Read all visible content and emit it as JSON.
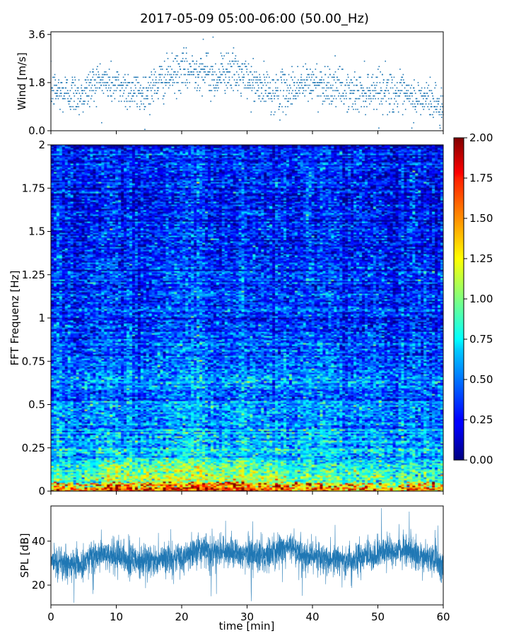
{
  "title": "2017-05-09 05:00-06:00 (50.00_Hz)",
  "chart_data": [
    {
      "type": "scatter",
      "id": "wind",
      "ylabel": "Wind [m/s]",
      "xlim": [
        0,
        60
      ],
      "ylim": [
        0,
        3.7
      ],
      "yticks": [
        0.0,
        1.8,
        3.6
      ],
      "ytick_labels": [
        "0.0",
        "1.8",
        "3.6"
      ],
      "marker_color": "#1f77b4",
      "trend": [
        [
          0,
          1.5
        ],
        [
          5,
          1.35
        ],
        [
          7,
          1.9
        ],
        [
          10,
          1.7
        ],
        [
          14,
          1.4
        ],
        [
          18,
          2.0
        ],
        [
          20,
          2.2
        ],
        [
          23,
          2.3
        ],
        [
          25,
          1.9
        ],
        [
          27,
          2.3
        ],
        [
          30,
          1.9
        ],
        [
          32,
          1.6
        ],
        [
          35,
          1.4
        ],
        [
          38,
          1.7
        ],
        [
          40,
          1.8
        ],
        [
          43,
          1.7
        ],
        [
          46,
          1.4
        ],
        [
          50,
          1.6
        ],
        [
          52,
          1.5
        ],
        [
          55,
          1.2
        ],
        [
          58,
          1.2
        ],
        [
          60,
          0.8
        ]
      ],
      "notable_points": [
        [
          23.3,
          3.42
        ],
        [
          24.8,
          3.5
        ],
        [
          26.0,
          2.9
        ]
      ]
    },
    {
      "type": "heatmap",
      "id": "spectrogram",
      "ylabel": "FFT Frequenz [Hz]",
      "xlim": [
        0,
        60
      ],
      "ylim": [
        0,
        2
      ],
      "yticks": [
        0,
        0.25,
        0.5,
        0.75,
        1,
        1.25,
        1.5,
        1.75,
        2
      ],
      "ytick_labels": [
        "0",
        "0.25",
        "0.5",
        "0.75",
        "1",
        "1.25",
        "1.5",
        "1.75",
        "2"
      ],
      "colormap": "jet",
      "color_range": [
        0.0,
        2.0
      ],
      "colorbar_ticks": [
        "0.00",
        "0.25",
        "0.50",
        "0.75",
        "1.00",
        "1.25",
        "1.50",
        "1.75",
        "2.00"
      ],
      "mean_level_profile": [
        [
          0.0,
          1.3
        ],
        [
          0.05,
          0.95
        ],
        [
          0.1,
          0.8
        ],
        [
          0.2,
          0.65
        ],
        [
          0.3,
          0.55
        ],
        [
          0.5,
          0.45
        ],
        [
          0.75,
          0.35
        ],
        [
          1.0,
          0.3
        ],
        [
          1.5,
          0.25
        ],
        [
          2.0,
          0.22
        ]
      ]
    },
    {
      "type": "area",
      "id": "spl",
      "ylabel": "SPL [dB]",
      "xlabel": "time [min]",
      "xlim": [
        0,
        60
      ],
      "ylim": [
        11,
        56
      ],
      "yticks": [
        20,
        40
      ],
      "ytick_labels": [
        "20",
        "40"
      ],
      "xticks": [
        0,
        10,
        20,
        30,
        40,
        50,
        60
      ],
      "xtick_labels": [
        "0",
        "10",
        "20",
        "30",
        "40",
        "50",
        "60"
      ],
      "line_color": "#1f77b4",
      "trend": [
        [
          0,
          31
        ],
        [
          5,
          29
        ],
        [
          6,
          34
        ],
        [
          10,
          33
        ],
        [
          15,
          31
        ],
        [
          20,
          33
        ],
        [
          23,
          36
        ],
        [
          27,
          35
        ],
        [
          30,
          34
        ],
        [
          33,
          34
        ],
        [
          36,
          37
        ],
        [
          40,
          33
        ],
        [
          45,
          31
        ],
        [
          50,
          34
        ],
        [
          53,
          36
        ],
        [
          56,
          34
        ],
        [
          58,
          32
        ],
        [
          60,
          29
        ]
      ]
    }
  ]
}
